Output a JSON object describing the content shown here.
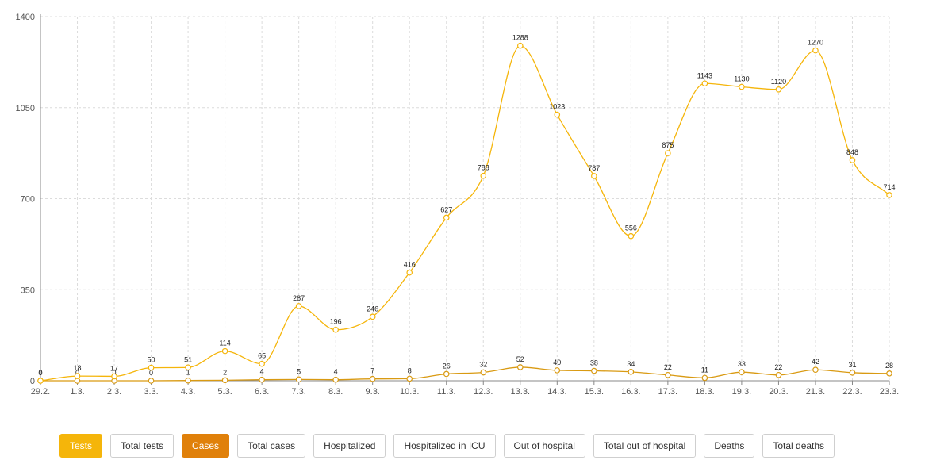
{
  "chart_data": {
    "type": "line",
    "categories": [
      "29.2.",
      "1.3.",
      "2.3.",
      "3.3.",
      "4.3.",
      "5.3.",
      "6.3.",
      "7.3.",
      "8.3.",
      "9.3.",
      "10.3.",
      "11.3.",
      "12.3.",
      "13.3.",
      "14.3.",
      "15.3.",
      "16.3.",
      "17.3.",
      "18.3.",
      "19.3.",
      "20.3.",
      "21.3.",
      "22.3.",
      "23.3."
    ],
    "series": [
      {
        "name": "Tests",
        "color": "#f5b50a",
        "values": [
          0,
          18,
          17,
          50,
          51,
          114,
          65,
          287,
          196,
          246,
          416,
          627,
          788,
          1288,
          1023,
          787,
          556,
          875,
          1143,
          1130,
          1120,
          1270,
          848,
          714
        ]
      },
      {
        "name": "Cases",
        "color": "#d99a12",
        "values": [
          0,
          0,
          0,
          0,
          1,
          2,
          4,
          5,
          4,
          7,
          8,
          26,
          32,
          52,
          40,
          38,
          34,
          22,
          11,
          33,
          22,
          42,
          31,
          28
        ]
      }
    ],
    "yticks": [
      0,
      350,
      700,
      1050,
      1400
    ],
    "ylim": [
      0,
      1400
    ],
    "grid": true
  },
  "buttons": [
    {
      "label": "Tests",
      "state": "on-tests"
    },
    {
      "label": "Total tests",
      "state": ""
    },
    {
      "label": "Cases",
      "state": "on-cases"
    },
    {
      "label": "Total cases",
      "state": ""
    },
    {
      "label": "Hospitalized",
      "state": ""
    },
    {
      "label": "Hospitalized in ICU",
      "state": ""
    },
    {
      "label": "Out of hospital",
      "state": ""
    },
    {
      "label": "Total out of hospital",
      "state": ""
    },
    {
      "label": "Deaths",
      "state": ""
    },
    {
      "label": "Total deaths",
      "state": ""
    }
  ]
}
